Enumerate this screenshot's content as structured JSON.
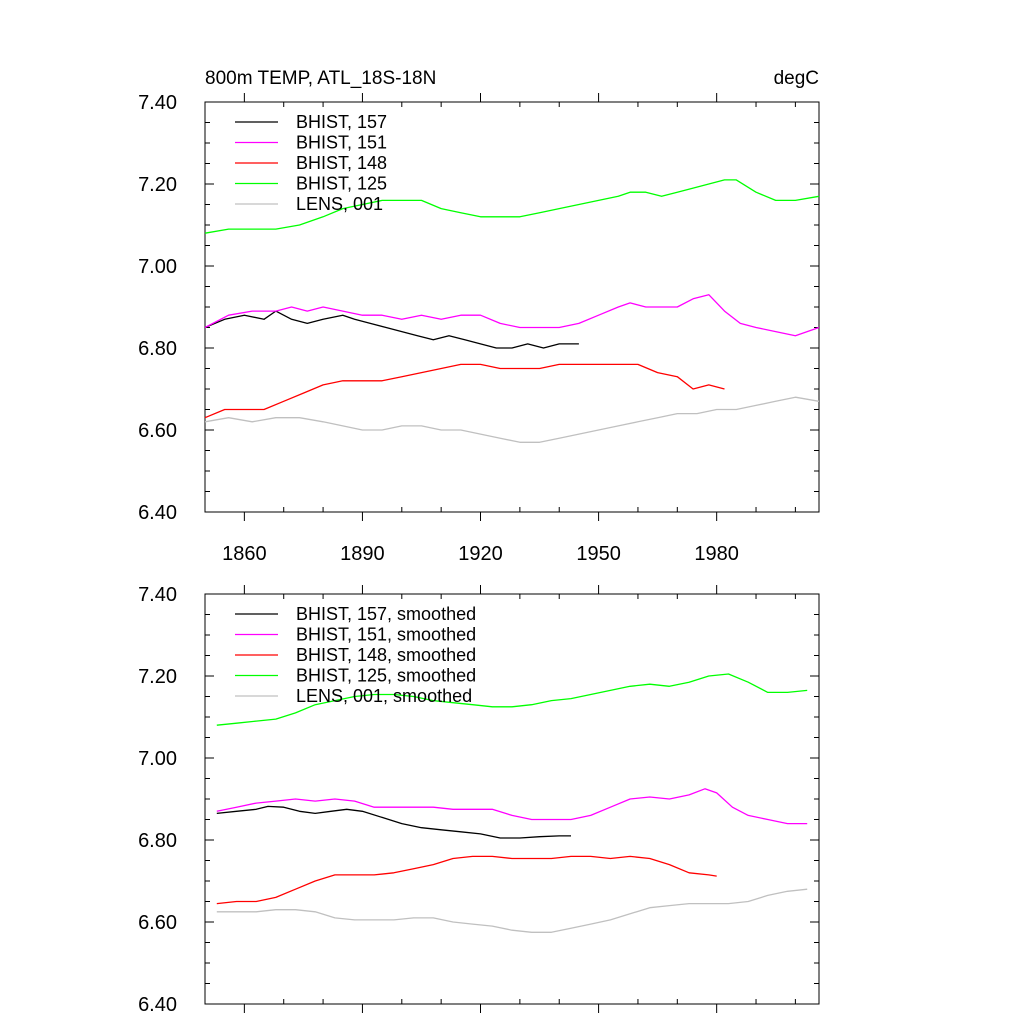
{
  "chart_data": [
    {
      "type": "line",
      "title_left": "800m TEMP, ATL_18S-18N",
      "title_right": "degC",
      "xlim": [
        1850,
        2006
      ],
      "ylim": [
        6.4,
        7.4
      ],
      "x_ticks": [
        1860,
        1890,
        1920,
        1950,
        1980
      ],
      "x_tick_labels": [
        "1860",
        "1890",
        "1920",
        "1950",
        "1980"
      ],
      "y_ticks": [
        6.4,
        6.6,
        6.8,
        7.0,
        7.2,
        7.4
      ],
      "y_tick_labels": [
        "6.40",
        "6.60",
        "6.80",
        "7.00",
        "7.20",
        "7.40"
      ],
      "legend_position": "top-left",
      "series": [
        {
          "name": "BHIST, 157",
          "color": "#000000",
          "x": [
            1850,
            1855,
            1860,
            1865,
            1868,
            1872,
            1876,
            1880,
            1885,
            1888,
            1892,
            1896,
            1900,
            1904,
            1908,
            1912,
            1916,
            1920,
            1924,
            1928,
            1932,
            1936,
            1940,
            1945
          ],
          "y": [
            6.85,
            6.87,
            6.88,
            6.87,
            6.89,
            6.87,
            6.86,
            6.87,
            6.88,
            6.87,
            6.86,
            6.85,
            6.84,
            6.83,
            6.82,
            6.83,
            6.82,
            6.81,
            6.8,
            6.8,
            6.81,
            6.8,
            6.81,
            6.81
          ]
        },
        {
          "name": "BHIST, 151",
          "color": "#ff00ff",
          "x": [
            1850,
            1856,
            1862,
            1868,
            1872,
            1876,
            1880,
            1885,
            1890,
            1895,
            1900,
            1905,
            1910,
            1915,
            1920,
            1925,
            1930,
            1935,
            1940,
            1945,
            1950,
            1955,
            1958,
            1962,
            1966,
            1970,
            1974,
            1978,
            1982,
            1986,
            1990,
            1995,
            2000,
            2006
          ],
          "y": [
            6.85,
            6.88,
            6.89,
            6.89,
            6.9,
            6.89,
            6.9,
            6.89,
            6.88,
            6.88,
            6.87,
            6.88,
            6.87,
            6.88,
            6.88,
            6.86,
            6.85,
            6.85,
            6.85,
            6.86,
            6.88,
            6.9,
            6.91,
            6.9,
            6.9,
            6.9,
            6.92,
            6.93,
            6.89,
            6.86,
            6.85,
            6.84,
            6.83,
            6.85
          ]
        },
        {
          "name": "BHIST, 148",
          "color": "#ff0000",
          "x": [
            1850,
            1855,
            1860,
            1865,
            1870,
            1875,
            1880,
            1885,
            1890,
            1895,
            1900,
            1905,
            1910,
            1915,
            1920,
            1925,
            1930,
            1935,
            1940,
            1945,
            1950,
            1955,
            1960,
            1965,
            1970,
            1974,
            1978,
            1982
          ],
          "y": [
            6.63,
            6.65,
            6.65,
            6.65,
            6.67,
            6.69,
            6.71,
            6.72,
            6.72,
            6.72,
            6.73,
            6.74,
            6.75,
            6.76,
            6.76,
            6.75,
            6.75,
            6.75,
            6.76,
            6.76,
            6.76,
            6.76,
            6.76,
            6.74,
            6.73,
            6.7,
            6.71,
            6.7
          ]
        },
        {
          "name": "BHIST, 125",
          "color": "#00ff00",
          "x": [
            1850,
            1856,
            1862,
            1868,
            1874,
            1880,
            1885,
            1890,
            1895,
            1900,
            1905,
            1910,
            1915,
            1920,
            1925,
            1930,
            1935,
            1940,
            1945,
            1950,
            1955,
            1958,
            1962,
            1966,
            1970,
            1974,
            1978,
            1982,
            1985,
            1990,
            1995,
            2000,
            2006
          ],
          "y": [
            7.08,
            7.09,
            7.09,
            7.09,
            7.1,
            7.12,
            7.14,
            7.15,
            7.16,
            7.16,
            7.16,
            7.14,
            7.13,
            7.12,
            7.12,
            7.12,
            7.13,
            7.14,
            7.15,
            7.16,
            7.17,
            7.18,
            7.18,
            7.17,
            7.18,
            7.19,
            7.2,
            7.21,
            7.21,
            7.18,
            7.16,
            7.16,
            7.17
          ]
        },
        {
          "name": "LENS, 001",
          "color": "#c0c0c0",
          "x": [
            1850,
            1856,
            1862,
            1868,
            1874,
            1880,
            1885,
            1890,
            1895,
            1900,
            1905,
            1910,
            1915,
            1920,
            1925,
            1930,
            1935,
            1940,
            1945,
            1950,
            1955,
            1960,
            1965,
            1970,
            1975,
            1980,
            1985,
            1990,
            1995,
            2000,
            2006
          ],
          "y": [
            6.62,
            6.63,
            6.62,
            6.63,
            6.63,
            6.62,
            6.61,
            6.6,
            6.6,
            6.61,
            6.61,
            6.6,
            6.6,
            6.59,
            6.58,
            6.57,
            6.57,
            6.58,
            6.59,
            6.6,
            6.61,
            6.62,
            6.63,
            6.64,
            6.64,
            6.65,
            6.65,
            6.66,
            6.67,
            6.68,
            6.67
          ]
        }
      ]
    },
    {
      "type": "line",
      "xlim": [
        1850,
        2006
      ],
      "ylim": [
        6.4,
        7.4
      ],
      "x_ticks": [
        1860,
        1890,
        1920,
        1950,
        1980
      ],
      "y_ticks": [
        6.4,
        6.6,
        6.8,
        7.0,
        7.2,
        7.4
      ],
      "y_tick_labels": [
        "6.40",
        "6.60",
        "6.80",
        "7.00",
        "7.20",
        "7.40"
      ],
      "legend_position": "top-left",
      "series": [
        {
          "name": "BHIST, 157, smoothed",
          "color": "#000000",
          "x": [
            1853,
            1858,
            1863,
            1866,
            1870,
            1874,
            1878,
            1882,
            1886,
            1890,
            1895,
            1900,
            1905,
            1910,
            1915,
            1920,
            1925,
            1930,
            1935,
            1940,
            1943
          ],
          "y": [
            6.865,
            6.87,
            6.875,
            6.882,
            6.88,
            6.87,
            6.865,
            6.87,
            6.875,
            6.87,
            6.855,
            6.84,
            6.83,
            6.825,
            6.82,
            6.815,
            6.805,
            6.805,
            6.808,
            6.81,
            6.81
          ]
        },
        {
          "name": "BHIST, 151, smoothed",
          "color": "#ff00ff",
          "x": [
            1853,
            1858,
            1863,
            1868,
            1873,
            1878,
            1883,
            1888,
            1893,
            1898,
            1903,
            1908,
            1913,
            1918,
            1923,
            1928,
            1933,
            1938,
            1943,
            1948,
            1953,
            1958,
            1963,
            1968,
            1973,
            1977,
            1980,
            1984,
            1988,
            1993,
            1998,
            2003
          ],
          "y": [
            6.87,
            6.88,
            6.89,
            6.895,
            6.9,
            6.895,
            6.9,
            6.895,
            6.88,
            6.88,
            6.88,
            6.88,
            6.875,
            6.875,
            6.875,
            6.86,
            6.85,
            6.85,
            6.85,
            6.86,
            6.88,
            6.9,
            6.905,
            6.9,
            6.91,
            6.925,
            6.915,
            6.88,
            6.86,
            6.85,
            6.84,
            6.84
          ]
        },
        {
          "name": "BHIST, 148, smoothed",
          "color": "#ff0000",
          "x": [
            1853,
            1858,
            1863,
            1868,
            1873,
            1878,
            1883,
            1888,
            1893,
            1898,
            1903,
            1908,
            1913,
            1918,
            1923,
            1928,
            1933,
            1938,
            1943,
            1948,
            1953,
            1958,
            1963,
            1968,
            1973,
            1978,
            1980
          ],
          "y": [
            6.645,
            6.65,
            6.65,
            6.66,
            6.68,
            6.7,
            6.715,
            6.715,
            6.715,
            6.72,
            6.73,
            6.74,
            6.755,
            6.76,
            6.76,
            6.755,
            6.755,
            6.755,
            6.76,
            6.76,
            6.755,
            6.76,
            6.755,
            6.74,
            6.72,
            6.715,
            6.712
          ]
        },
        {
          "name": "BHIST, 125, smoothed",
          "color": "#00ff00",
          "x": [
            1853,
            1858,
            1863,
            1868,
            1873,
            1878,
            1883,
            1888,
            1893,
            1898,
            1903,
            1908,
            1913,
            1918,
            1923,
            1928,
            1933,
            1938,
            1943,
            1948,
            1953,
            1958,
            1963,
            1968,
            1973,
            1978,
            1983,
            1988,
            1993,
            1998,
            2003
          ],
          "y": [
            7.08,
            7.085,
            7.09,
            7.095,
            7.11,
            7.13,
            7.14,
            7.15,
            7.155,
            7.155,
            7.15,
            7.14,
            7.135,
            7.13,
            7.125,
            7.125,
            7.13,
            7.14,
            7.145,
            7.155,
            7.165,
            7.175,
            7.18,
            7.175,
            7.185,
            7.2,
            7.205,
            7.185,
            7.16,
            7.16,
            7.165
          ]
        },
        {
          "name": "LENS, 001, smoothed",
          "color": "#c0c0c0",
          "x": [
            1853,
            1858,
            1863,
            1868,
            1873,
            1878,
            1883,
            1888,
            1893,
            1898,
            1903,
            1908,
            1913,
            1918,
            1923,
            1928,
            1933,
            1938,
            1943,
            1948,
            1953,
            1958,
            1963,
            1968,
            1973,
            1978,
            1983,
            1988,
            1993,
            1998,
            2003
          ],
          "y": [
            6.625,
            6.625,
            6.625,
            6.63,
            6.63,
            6.625,
            6.61,
            6.605,
            6.605,
            6.605,
            6.61,
            6.61,
            6.6,
            6.595,
            6.59,
            6.58,
            6.575,
            6.575,
            6.585,
            6.595,
            6.605,
            6.62,
            6.635,
            6.64,
            6.645,
            6.645,
            6.645,
            6.65,
            6.665,
            6.675,
            6.68
          ]
        }
      ]
    }
  ]
}
